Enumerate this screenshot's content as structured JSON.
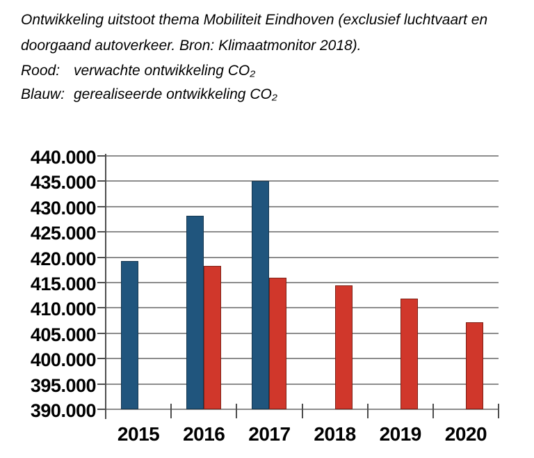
{
  "header": {
    "title_line1": "Ontwikkeling uitstoot thema Mobiliteit Eindhoven (exclusief luchtvaart en",
    "title_line2": "doorgaand autoverkeer. Bron: Klimaatmonitor 2018).",
    "legend": [
      {
        "label": "Rood:",
        "description": "verwachte ontwikkeling CO₂",
        "color": "#D0372B"
      },
      {
        "label": "Blauw:",
        "description": "gerealiseerde ontwikkeling CO₂",
        "color": "#20557D"
      }
    ]
  },
  "chart_data": {
    "type": "bar",
    "title": "Ontwikkeling uitstoot thema Mobiliteit Eindhoven (exclusief luchtvaart en doorgaand autoverkeer. Bron: Klimaatmonitor 2018).",
    "categories": [
      "2015",
      "2016",
      "2017",
      "2018",
      "2019",
      "2020"
    ],
    "series": [
      {
        "key": "gerealiseerd",
        "name": "gerealiseerde ontwikkeling CO₂",
        "color": "#20557D",
        "border_color": "#14364F",
        "values": [
          419300,
          428200,
          435000,
          null,
          null,
          null
        ]
      },
      {
        "key": "verwacht",
        "name": "verwachte ontwikkeling CO₂",
        "color": "#D0372B",
        "border_color": "#7E2015",
        "values": [
          null,
          418300,
          416000,
          414500,
          411900,
          407200
        ]
      }
    ],
    "xlabel": "",
    "ylabel": "",
    "ylim": [
      390000,
      440000
    ],
    "ytick_step": 5000,
    "ytick_labels": [
      "390.000",
      "395.000",
      "400.000",
      "405.000",
      "410.000",
      "415.000",
      "420.000",
      "425.000",
      "430.000",
      "435.000",
      "440.000"
    ],
    "grid": true,
    "grid_color": "#8c8c8c",
    "axis_color": "#4d4d4d",
    "legend_position": "none"
  }
}
